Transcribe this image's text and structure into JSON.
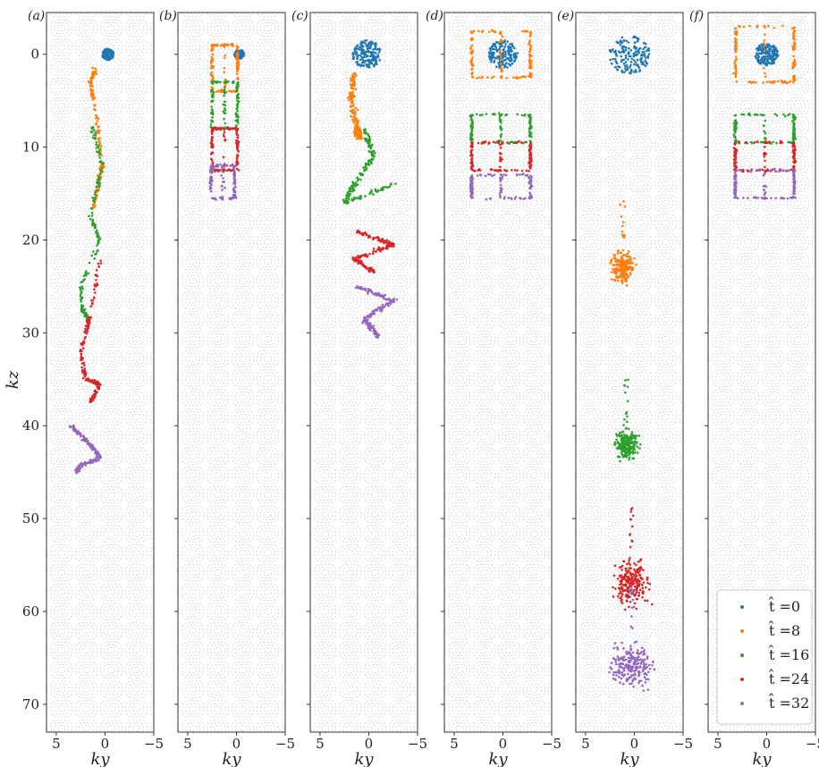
{
  "chart_data": {
    "type": "scatter",
    "xlabel": "ky",
    "ylabel": "kz",
    "xlim": [
      6,
      -5
    ],
    "ylim": [
      73,
      -4.5
    ],
    "x_ticks": [
      5,
      0,
      -5
    ],
    "y_ticks": [
      0,
      10,
      20,
      30,
      40,
      50,
      60,
      70
    ],
    "legend": {
      "placement": "lower-right of panel (f)",
      "entries": [
        "t̂ =0",
        "t̂ =8",
        "t̂ =16",
        "t̂ =24",
        "t̂ =32"
      ]
    },
    "colors": {
      "t0": "#1f77b4",
      "t8": "#ff7f0e",
      "t16": "#2ca02c",
      "t24": "#d62728",
      "t32": "#9467bd",
      "background_cells": "#bdbdbd"
    },
    "panels": [
      {
        "label": "(a)",
        "clusters": [
          {
            "t": "t0",
            "shape": "disc",
            "cx": -0.3,
            "cy": 0,
            "r": 0.6
          },
          {
            "t": "t8",
            "shape": "column",
            "points": [
              [
                1,
                1.5
              ],
              [
                1.5,
                3
              ],
              [
                0.8,
                7
              ],
              [
                0.3,
                12
              ],
              [
                0.7,
                14
              ],
              [
                1.2,
                16.5
              ]
            ]
          },
          {
            "t": "t16",
            "shape": "column",
            "points": [
              [
                1.5,
                7.5
              ],
              [
                0.2,
                12
              ],
              [
                1.5,
                17.5
              ],
              [
                0.5,
                20
              ],
              [
                2.5,
                25
              ],
              [
                2.3,
                27.5
              ],
              [
                1.8,
                28.5
              ]
            ]
          },
          {
            "t": "t24",
            "shape": "column",
            "points": [
              [
                0.5,
                22
              ],
              [
                1.5,
                28
              ],
              [
                2.5,
                32
              ],
              [
                2,
                35
              ],
              [
                0.5,
                35.5
              ],
              [
                1.5,
                37.5
              ]
            ]
          },
          {
            "t": "t32",
            "shape": "column",
            "points": [
              [
                3.5,
                40
              ],
              [
                1.5,
                42
              ],
              [
                0.5,
                43.5
              ],
              [
                2.5,
                44.2
              ],
              [
                3,
                45
              ]
            ]
          }
        ]
      },
      {
        "label": "(b)",
        "clusters": [
          {
            "t": "t0",
            "shape": "disc",
            "cx": -0.3,
            "cy": 0,
            "r": 0.5
          },
          {
            "t": "t8",
            "shape": "channel",
            "x_left": 2.5,
            "x_right": -0.1,
            "y0": -1,
            "y1": 4
          },
          {
            "t": "t16",
            "shape": "channel",
            "x_left": 2.5,
            "x_right": -0.1,
            "y0": 3,
            "y1": 8
          },
          {
            "t": "t24",
            "shape": "channel",
            "x_left": 2.5,
            "x_right": -0.1,
            "y0": 8,
            "y1": 12.5
          },
          {
            "t": "t32",
            "shape": "channel",
            "x_left": 2.6,
            "x_right": 0.2,
            "y0": 12,
            "y1": 15.5
          }
        ]
      },
      {
        "label": "(c)",
        "clusters": [
          {
            "t": "t0",
            "shape": "disc",
            "cx": 0.2,
            "cy": 0,
            "r": 1.5
          },
          {
            "t": "t8",
            "shape": "band",
            "points": [
              [
                1.5,
                2
              ],
              [
                1.8,
                5
              ],
              [
                1.2,
                8
              ],
              [
                1,
                9
              ]
            ]
          },
          {
            "t": "t16",
            "shape": "band",
            "points": [
              [
                0.5,
                8
              ],
              [
                -0.5,
                11
              ],
              [
                1.5,
                14
              ],
              [
                2.5,
                16
              ],
              [
                -2.5,
                14
              ]
            ]
          },
          {
            "t": "t24",
            "shape": "band",
            "points": [
              [
                1.5,
                19
              ],
              [
                -2.5,
                20.5
              ],
              [
                1.5,
                22
              ],
              [
                -0.5,
                23.5
              ]
            ]
          },
          {
            "t": "t32",
            "shape": "band",
            "points": [
              [
                1.2,
                25
              ],
              [
                -2.5,
                26.5
              ],
              [
                0.5,
                28.5
              ],
              [
                -1,
                30.5
              ]
            ]
          }
        ]
      },
      {
        "label": "(d)",
        "clusters": [
          {
            "t": "t0",
            "shape": "disc",
            "cx": 0,
            "cy": 0,
            "r": 1.5
          },
          {
            "t": "t8",
            "shape": "channel",
            "x_left": 3.2,
            "x_right": -2.8,
            "y0": -2.5,
            "y1": 2.5
          },
          {
            "t": "t16",
            "shape": "channel",
            "x_left": 3.2,
            "x_right": -2.8,
            "y0": 6.5,
            "y1": 9.5
          },
          {
            "t": "t24",
            "shape": "channel",
            "x_left": 3.2,
            "x_right": -2.8,
            "y0": 9.5,
            "y1": 12.5
          },
          {
            "t": "t32",
            "shape": "channel",
            "x_left": 3.2,
            "x_right": -2.8,
            "y0": 13,
            "y1": 15.5
          }
        ]
      },
      {
        "label": "(e)",
        "clusters": [
          {
            "t": "t0",
            "shape": "disc",
            "cx": 0.5,
            "cy": 0,
            "r": 2.1
          },
          {
            "t": "t8",
            "shape": "cloud",
            "cx": 1.2,
            "cy": 23,
            "rx": 1.6,
            "ry": 2.2
          },
          {
            "t": "t16",
            "shape": "cloud",
            "cx": 0.8,
            "cy": 42,
            "rx": 1.5,
            "ry": 2.2
          },
          {
            "t": "t24",
            "shape": "cloud",
            "cx": 0.3,
            "cy": 57,
            "rx": 2.5,
            "ry": 3.5
          },
          {
            "t": "t32",
            "shape": "cloud",
            "cx": 0.3,
            "cy": 66,
            "rx": 3,
            "ry": 3.5
          }
        ]
      },
      {
        "label": "(f)",
        "clusters": [
          {
            "t": "t0",
            "shape": "disc",
            "cx": 0,
            "cy": 0,
            "r": 1.2
          },
          {
            "t": "t8",
            "shape": "channel",
            "x_left": 3.2,
            "x_right": -2.8,
            "y0": -3,
            "y1": 3
          },
          {
            "t": "t16",
            "shape": "channel",
            "x_left": 3.2,
            "x_right": -2.8,
            "y0": 6.5,
            "y1": 9.5
          },
          {
            "t": "t24",
            "shape": "channel",
            "x_left": 3.2,
            "x_right": -2.8,
            "y0": 9.5,
            "y1": 12.5
          },
          {
            "t": "t32",
            "shape": "channel",
            "x_left": 3.2,
            "x_right": -2.8,
            "y0": 12.5,
            "y1": 15.5
          }
        ]
      }
    ]
  }
}
